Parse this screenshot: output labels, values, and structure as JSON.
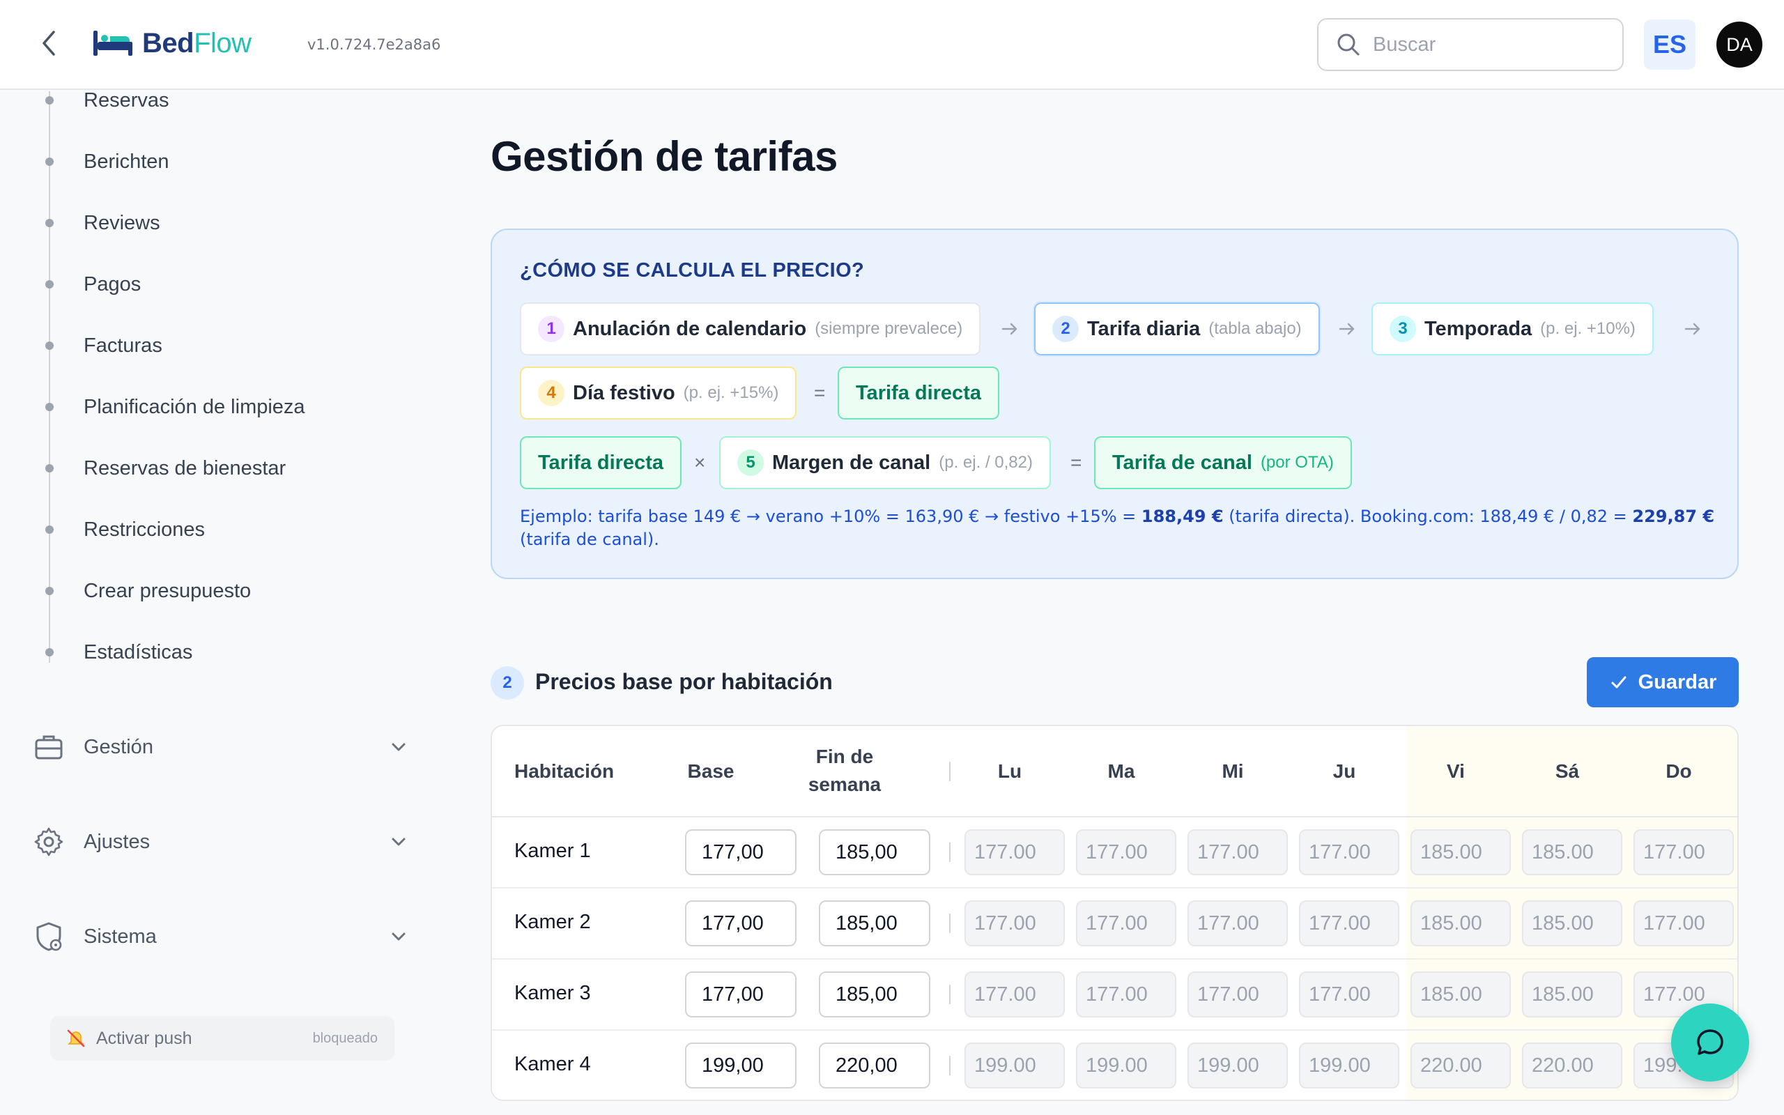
{
  "header": {
    "logo_part1": "Bed",
    "logo_part2": "Flow",
    "version": "v1.0.724.7e2a8a6",
    "search_placeholder": "Buscar",
    "language": "ES",
    "user_initials": "DA"
  },
  "sidebar": {
    "items": [
      {
        "label": "Reservas"
      },
      {
        "label": "Berichten"
      },
      {
        "label": "Reviews"
      },
      {
        "label": "Pagos"
      },
      {
        "label": "Facturas"
      },
      {
        "label": "Planificación de limpieza"
      },
      {
        "label": "Reservas de bienestar"
      },
      {
        "label": "Restricciones"
      },
      {
        "label": "Crear presupuesto"
      },
      {
        "label": "Estadísticas"
      }
    ],
    "groups": [
      {
        "label": "Gestión",
        "icon": "briefcase-icon"
      },
      {
        "label": "Ajustes",
        "icon": "gear-icon"
      },
      {
        "label": "Sistema",
        "icon": "shield-gear-icon"
      }
    ],
    "push": {
      "label": "Activar push",
      "status": "bloqueado"
    }
  },
  "main": {
    "title": "Gestión de tarifas",
    "info": {
      "title": "¿CÓMO SE CALCULA EL PRECIO?",
      "steps": [
        {
          "num": "1",
          "label": "Anulación de calendario",
          "hint": "(siempre prevalece)"
        },
        {
          "num": "2",
          "label": "Tarifa diaria",
          "hint": "(tabla abajo)"
        },
        {
          "num": "3",
          "label": "Temporada",
          "hint": "(p. ej. +10%)"
        },
        {
          "num": "4",
          "label": "Día festivo",
          "hint": "(p. ej. +15%)"
        }
      ],
      "arrow": "→",
      "equals": "=",
      "times": "×",
      "direct_rate": "Tarifa directa",
      "channel_margin": {
        "num": "5",
        "label": "Margen de canal",
        "hint": "(p. ej. / 0,82)"
      },
      "channel_rate": {
        "label": "Tarifa de canal",
        "hint": "(por OTA)"
      },
      "example": {
        "part1": "Ejemplo: tarifa base 149 € → verano +10% = 163,90 € → festivo +15% = ",
        "bold1": "188,49 €",
        "part2": " (tarifa directa). Booking.com: 188,49 € / 0,82 = ",
        "bold2": "229,87 €",
        "part3": " (tarifa de canal)."
      }
    },
    "section": {
      "num": "2",
      "title": "Precios base por habitación",
      "save_label": "Guardar"
    },
    "table": {
      "headers": {
        "room": "Habitación",
        "base": "Base",
        "weekend": "Fin de semana",
        "days": [
          "Lu",
          "Ma",
          "Mi",
          "Ju",
          "Vi",
          "Sá",
          "Do"
        ]
      },
      "rows": [
        {
          "room": "Kamer 1",
          "base": "177,00",
          "weekend": "185,00",
          "days": [
            "177.00",
            "177.00",
            "177.00",
            "177.00",
            "185.00",
            "185.00",
            "177.00"
          ]
        },
        {
          "room": "Kamer 2",
          "base": "177,00",
          "weekend": "185,00",
          "days": [
            "177.00",
            "177.00",
            "177.00",
            "177.00",
            "185.00",
            "185.00",
            "177.00"
          ]
        },
        {
          "room": "Kamer 3",
          "base": "177,00",
          "weekend": "185,00",
          "days": [
            "177.00",
            "177.00",
            "177.00",
            "177.00",
            "185.00",
            "185.00",
            "177.00"
          ]
        },
        {
          "room": "Kamer 4",
          "base": "199,00",
          "weekend": "220,00",
          "days": [
            "199.00",
            "199.00",
            "199.00",
            "199.00",
            "220.00",
            "220.00",
            "199.00"
          ]
        }
      ]
    }
  },
  "colors": {
    "accent": "#2f7be5",
    "teal": "#22c1b0",
    "info_bg": "#eaf3fd",
    "green": "#047857"
  }
}
